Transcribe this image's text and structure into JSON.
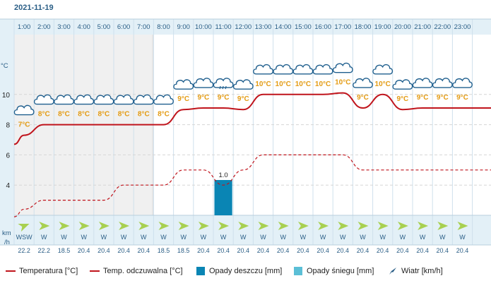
{
  "header": {
    "date": "2021-11-19"
  },
  "legend": {
    "temperature": "Temperatura [°C]",
    "feels_like": "Temp. odczuwalna [°C]",
    "rain": "Opady deszczu [mm]",
    "snow": "Opady śniegu [mm]",
    "wind": "Wiatr [km/h]"
  },
  "units": {
    "temp": "°C",
    "wind_top": "km",
    "wind_bottom": "/h"
  },
  "colors": {
    "temperature": "#c0141c",
    "rain": "#0a85b4",
    "snow": "#5bbfd6",
    "temp_label": "#e39b13",
    "wind_arrow": "#a8d050",
    "band": "#e3f0f7"
  },
  "chart_data": {
    "type": "line",
    "x": [
      "1:00",
      "2:00",
      "3:00",
      "4:00",
      "5:00",
      "6:00",
      "7:00",
      "8:00",
      "9:00",
      "10:00",
      "11:00",
      "12:00",
      "13:00",
      "14:00",
      "15:00",
      "16:00",
      "17:00",
      "18:00",
      "19:00",
      "20:00",
      "21:00",
      "22:00",
      "23:00"
    ],
    "yticks": [
      4,
      6,
      8,
      10
    ],
    "ylim": [
      2,
      13.5
    ],
    "series": [
      {
        "name": "Temperatura [°C]",
        "values": [
          7.3,
          8.0,
          8.0,
          8.0,
          8.0,
          8.0,
          8.0,
          8.0,
          9.0,
          9.1,
          9.1,
          9.0,
          10.0,
          10.0,
          10.0,
          10.0,
          10.1,
          9.1,
          10.0,
          9.0,
          9.1,
          9.1,
          9.1
        ]
      },
      {
        "name": "Temp. odczuwalna [°C]",
        "values": [
          2.4,
          3.0,
          3.0,
          3.0,
          3.0,
          4.0,
          4.0,
          4.0,
          5.0,
          5.0,
          4.0,
          5.0,
          6.0,
          6.0,
          6.0,
          6.0,
          6.0,
          5.0,
          5.0,
          5.0,
          5.0,
          5.0,
          5.0
        ]
      }
    ],
    "temp_labels": [
      "7°C",
      "8°C",
      "8°C",
      "8°C",
      "8°C",
      "8°C",
      "8°C",
      "8°C",
      "9°C",
      "9°C",
      "9°C",
      "9°C",
      "10°C",
      "10°C",
      "10°C",
      "10°C",
      "10°C",
      "9°C",
      "10°C",
      "9°C",
      "9°C",
      "9°C",
      "9°C"
    ],
    "rain_mm": [
      0,
      0,
      0,
      0,
      0,
      0,
      0,
      0,
      0,
      0,
      1.0,
      0,
      0,
      0,
      0,
      0,
      0,
      0,
      0,
      0,
      0,
      0,
      0
    ],
    "rain_label": "1.0",
    "night_columns": [
      0,
      1,
      2,
      3,
      4,
      5,
      6
    ],
    "wind_dir": [
      "WSW",
      "W",
      "W",
      "W",
      "W",
      "W",
      "W",
      "W",
      "W",
      "W",
      "W",
      "W",
      "W",
      "W",
      "W",
      "W",
      "W",
      "W",
      "W",
      "W",
      "W",
      "W",
      "W"
    ],
    "wind_speed": [
      "22.2",
      "22.2",
      "18.5",
      "20.4",
      "20.4",
      "20.4",
      "20.4",
      "18.5",
      "18.5",
      "20.4",
      "20.4",
      "20.4",
      "20.4",
      "20.4",
      "20.4",
      "20.4",
      "20.4",
      "20.4",
      "20.4",
      "20.4",
      "20.4",
      "20.4",
      "20.4"
    ]
  }
}
